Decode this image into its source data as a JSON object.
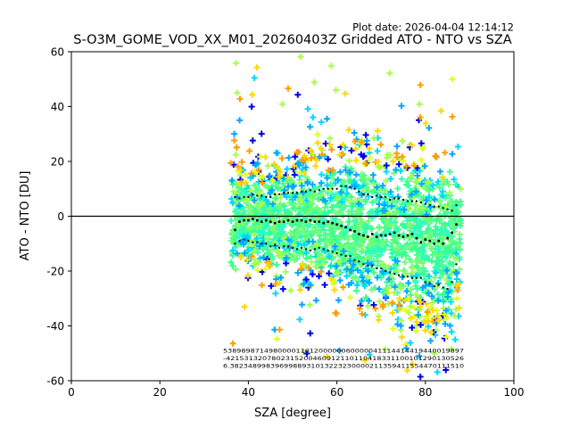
{
  "plot_date": "Plot date: 2026-04-04 12:14:12",
  "chart_data": {
    "type": "scatter",
    "title": "S-O3M_GOME_VOD_XX_M01_20260403Z Gridded ATO - NTO vs SZA",
    "xlabel": "SZA [degree]",
    "ylabel": "ATO - NTO [DU]",
    "xlim": [
      0,
      100
    ],
    "ylim": [
      -60,
      60
    ],
    "xticks": [
      "0",
      "20",
      "40",
      "60",
      "80",
      "100"
    ],
    "yticks": [
      "-60",
      "-40",
      "-20",
      "0",
      "20",
      "40",
      "60"
    ],
    "zero_line": 0,
    "scatter_colors": [
      "#40ff8a",
      "#40ff8a",
      "#40ff8a",
      "#73ff73",
      "#2bffc0",
      "#a6ff4c",
      "#00d8ff",
      "#00a8ff",
      "#e2ff18",
      "#ffd800",
      "#ff9e00",
      "#0000e8"
    ],
    "sza_bins": [
      37,
      38,
      39,
      40,
      41,
      42,
      43,
      44,
      45,
      46,
      47,
      48,
      49,
      50,
      51,
      52,
      53,
      54,
      55,
      56,
      57,
      58,
      59,
      60,
      61,
      62,
      63,
      64,
      65,
      66,
      67,
      68,
      69,
      70,
      71,
      72,
      73,
      74,
      75,
      76,
      77,
      78,
      79,
      80,
      81,
      82,
      83,
      84,
      85,
      86,
      87
    ],
    "mean": [
      -5,
      -2,
      -1.5,
      -1.5,
      -1,
      -1.5,
      -2,
      -1.5,
      -2,
      -2.5,
      -2,
      -2,
      -1.5,
      -2,
      -1.5,
      -1.5,
      -2,
      -1.5,
      -2,
      -2,
      -2.5,
      -2,
      -2.5,
      -3,
      -3.5,
      -4,
      -5,
      -5.5,
      -6.5,
      -7,
      -7.5,
      -6.5,
      -7.5,
      -7,
      -7,
      -6.5,
      -6,
      -7,
      -7.5,
      -7,
      -6.5,
      -8,
      -9.5,
      -8.5,
      -9,
      -10,
      -9,
      -10,
      -8,
      -6,
      -3
    ],
    "upper": [
      7,
      6.5,
      7,
      7,
      8,
      7.5,
      7.5,
      7,
      7,
      8,
      8,
      8.5,
      8.5,
      8.5,
      8.5,
      9,
      9,
      9.5,
      9,
      9.5,
      10,
      10,
      10,
      10,
      11,
      11,
      10.5,
      10,
      9,
      8,
      8,
      7,
      7.5,
      7,
      7,
      6,
      6.5,
      6.5,
      6,
      5.5,
      5.5,
      5.5,
      5,
      4.5,
      4,
      3.5,
      3.5,
      3,
      2.5,
      2,
      4
    ],
    "lower": [
      -10,
      -9,
      -8.5,
      -9,
      -9.5,
      -9.5,
      -10,
      -10,
      -11,
      -10.5,
      -11.5,
      -11,
      -11,
      -11.5,
      -12,
      -11.5,
      -12,
      -12.5,
      -12,
      -11.5,
      -12,
      -12.5,
      -13,
      -13.5,
      -14,
      -14.5,
      -14.5,
      -16,
      -16.5,
      -17.5,
      -18,
      -18,
      -19,
      -19,
      -20,
      -20.5,
      -21,
      -21.5,
      -22,
      -22,
      -22.5,
      -22.5,
      -22.5,
      -24,
      -24.5,
      -25.5,
      -25,
      -26,
      -26.5,
      -24,
      -17.5
    ],
    "bin_label_rows": [
      "53898987149800001101200000060000041114414419440019897",
      "-4215313207802315200460912110110418331100101290130526",
      "6.3823489983969988931013223230000211359411554470111510"
    ]
  }
}
